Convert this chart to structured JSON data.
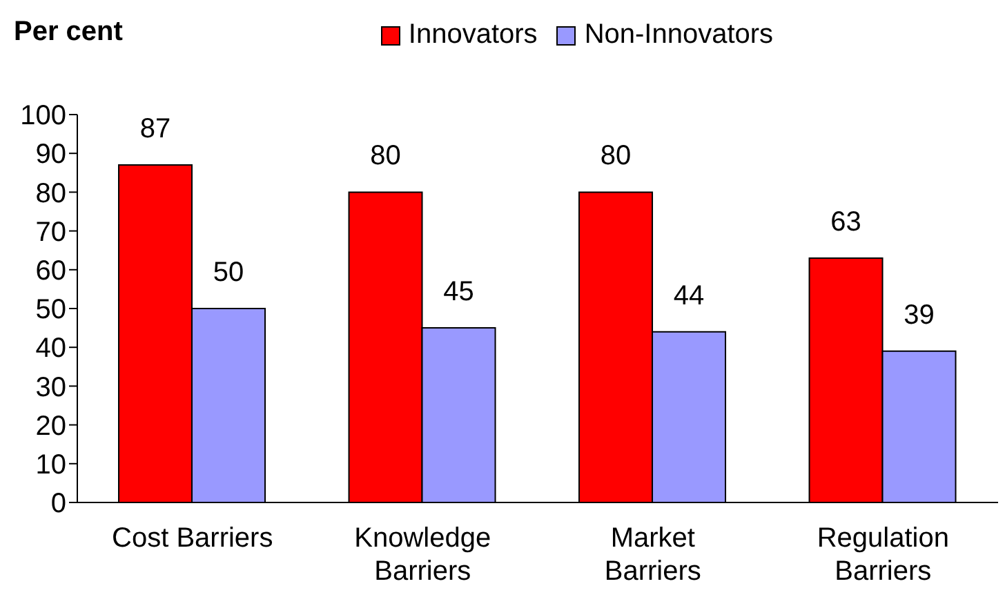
{
  "chart_data": {
    "type": "bar",
    "ylabel": "Per cent",
    "categories": [
      "Cost Barriers",
      "Knowledge Barriers",
      "Market Barriers",
      "Regulation Barriers"
    ],
    "series": [
      {
        "name": "Innovators",
        "color": "#ff0000",
        "values": [
          87,
          80,
          80,
          63
        ]
      },
      {
        "name": "Non-Innovators",
        "color": "#9999ff",
        "values": [
          50,
          45,
          44,
          39
        ]
      }
    ],
    "ylim": [
      0,
      100
    ],
    "yticks": [
      0,
      10,
      20,
      30,
      40,
      50,
      60,
      70,
      80,
      90,
      100
    ],
    "grid": false,
    "legend": "top",
    "data_labels": true
  }
}
